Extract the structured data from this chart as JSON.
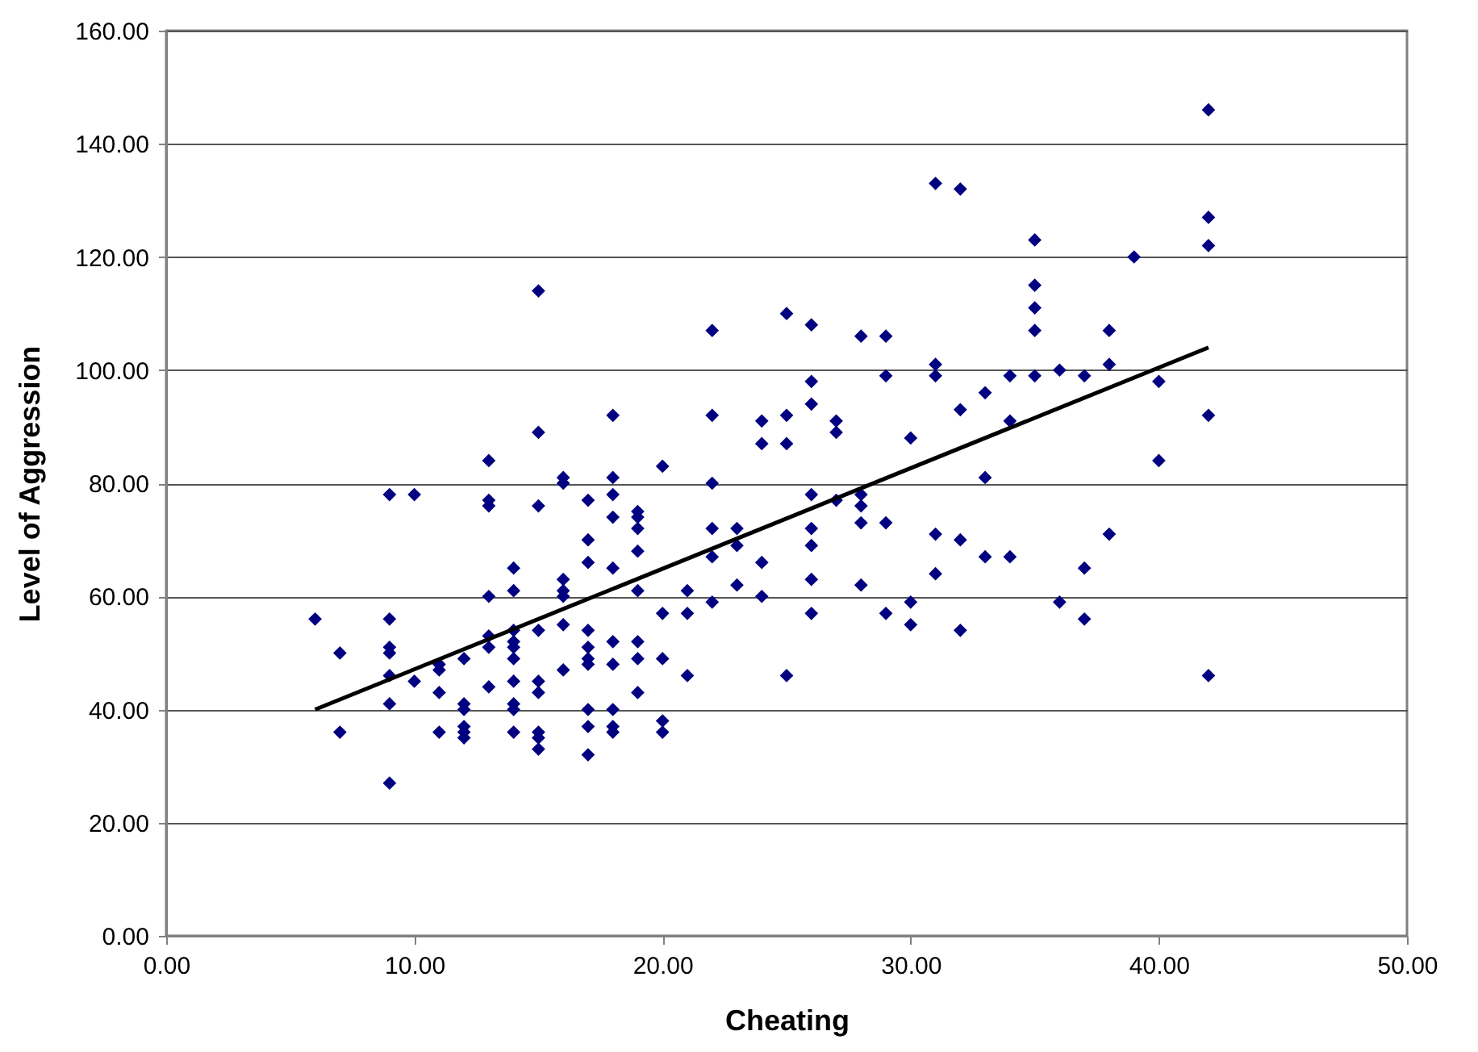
{
  "chart_data": {
    "type": "scatter",
    "xlabel": "Cheating",
    "ylabel": "Level of Aggression",
    "xlim": [
      0,
      50
    ],
    "ylim": [
      0,
      160
    ],
    "xticks": [
      {
        "value": 0,
        "label": "0.00"
      },
      {
        "value": 10,
        "label": "10.00"
      },
      {
        "value": 20,
        "label": "20.00"
      },
      {
        "value": 30,
        "label": "30.00"
      },
      {
        "value": 40,
        "label": "40.00"
      },
      {
        "value": 50,
        "label": "50.00"
      }
    ],
    "yticks": [
      {
        "value": 0,
        "label": "0.00"
      },
      {
        "value": 20,
        "label": "20.00"
      },
      {
        "value": 40,
        "label": "40.00"
      },
      {
        "value": 60,
        "label": "60.00"
      },
      {
        "value": 80,
        "label": "80.00"
      },
      {
        "value": 100,
        "label": "100.00"
      },
      {
        "value": 120,
        "label": "120.00"
      },
      {
        "value": 140,
        "label": "140.00"
      },
      {
        "value": 160,
        "label": "160.00"
      }
    ],
    "grid": "y",
    "series": [
      {
        "color": "#000080",
        "marker": "diamond",
        "x": [
          6,
          7,
          7,
          9,
          9,
          9,
          9,
          9,
          9,
          9,
          10,
          10,
          11,
          11,
          11,
          11,
          12,
          12,
          12,
          12,
          12,
          12,
          13,
          13,
          13,
          13,
          13,
          13,
          13,
          14,
          14,
          14,
          14,
          14,
          14,
          14,
          14,
          14,
          14,
          15,
          15,
          15,
          15,
          15,
          15,
          15,
          15,
          15,
          16,
          16,
          16,
          16,
          16,
          16,
          16,
          17,
          17,
          17,
          17,
          17,
          17,
          17,
          17,
          17,
          17,
          18,
          18,
          18,
          18,
          18,
          18,
          18,
          18,
          18,
          18,
          19,
          19,
          19,
          19,
          19,
          19,
          19,
          19,
          20,
          20,
          20,
          20,
          20,
          21,
          21,
          21,
          22,
          22,
          22,
          22,
          22,
          22,
          23,
          23,
          23,
          24,
          24,
          24,
          24,
          25,
          25,
          25,
          25,
          26,
          26,
          26,
          26,
          26,
          26,
          26,
          26,
          27,
          27,
          27,
          28,
          28,
          28,
          28,
          28,
          29,
          29,
          29,
          29,
          30,
          30,
          30,
          31,
          31,
          31,
          31,
          31,
          32,
          32,
          32,
          32,
          33,
          33,
          33,
          34,
          34,
          34,
          35,
          35,
          35,
          35,
          35,
          36,
          36,
          37,
          37,
          37,
          38,
          38,
          38,
          39,
          40,
          40,
          42,
          42,
          42,
          42,
          42
        ],
        "values": [
          56,
          50,
          36,
          78,
          56,
          51,
          50,
          46,
          41,
          27,
          78,
          45,
          48,
          47,
          43,
          36,
          49,
          41,
          40,
          37,
          36,
          35,
          84,
          77,
          76,
          60,
          53,
          51,
          44,
          65,
          61,
          54,
          52,
          51,
          49,
          45,
          41,
          40,
          36,
          114,
          89,
          76,
          54,
          45,
          43,
          36,
          35,
          33,
          81,
          80,
          63,
          61,
          60,
          55,
          47,
          77,
          70,
          66,
          54,
          51,
          49,
          48,
          40,
          37,
          32,
          92,
          81,
          78,
          74,
          65,
          52,
          48,
          40,
          37,
          36,
          75,
          74,
          72,
          68,
          61,
          52,
          49,
          43,
          83,
          57,
          49,
          38,
          36,
          61,
          57,
          46,
          107,
          92,
          80,
          72,
          67,
          59,
          72,
          69,
          62,
          91,
          87,
          66,
          60,
          110,
          92,
          87,
          46,
          108,
          98,
          94,
          78,
          72,
          69,
          63,
          57,
          91,
          89,
          77,
          106,
          78,
          76,
          73,
          62,
          106,
          99,
          73,
          57,
          88,
          59,
          55,
          133,
          101,
          99,
          71,
          64,
          132,
          93,
          70,
          54,
          96,
          81,
          67,
          99,
          91,
          67,
          123,
          115,
          111,
          107,
          99,
          100,
          59,
          99,
          65,
          56,
          107,
          101,
          71,
          120,
          98,
          84,
          146,
          127,
          122,
          92,
          46
        ]
      },
      {
        "type": "line",
        "color": "#000000",
        "marker": "none",
        "line_style": "solid",
        "x": [
          6,
          42
        ],
        "values": [
          40,
          104
        ]
      }
    ]
  }
}
